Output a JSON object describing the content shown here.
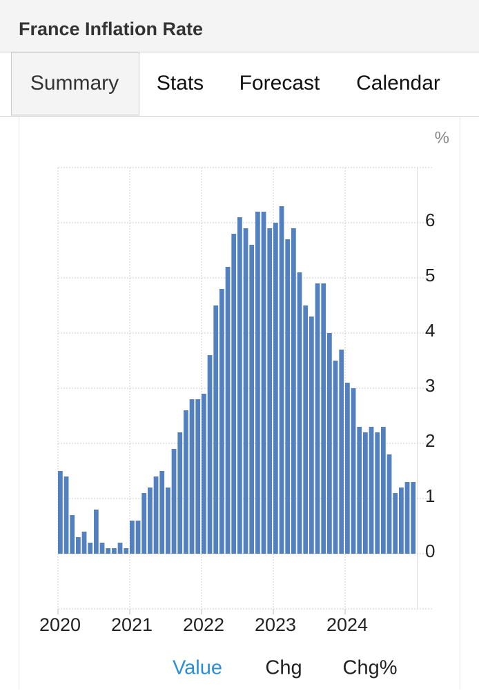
{
  "header": {
    "title": "France Inflation Rate"
  },
  "tabs": [
    "Summary",
    "Stats",
    "Forecast",
    "Calendar"
  ],
  "views": [
    "Value",
    "Chg",
    "Chg%"
  ],
  "chart_data": {
    "type": "bar",
    "ylabel": "%",
    "color": "#5381c0",
    "categories": [
      "2020",
      null,
      null,
      null,
      null,
      null,
      null,
      null,
      null,
      null,
      null,
      null,
      "2021",
      null,
      null,
      null,
      null,
      null,
      null,
      null,
      null,
      null,
      null,
      null,
      "2022",
      null,
      null,
      null,
      null,
      null,
      null,
      null,
      null,
      null,
      null,
      null,
      "2023",
      null,
      null,
      null,
      null,
      null,
      null,
      null,
      null,
      null,
      null,
      null,
      "2024",
      null,
      null,
      null,
      null,
      null,
      null,
      null,
      null,
      null,
      null,
      null
    ],
    "values": [
      1.5,
      1.4,
      0.7,
      0.3,
      0.4,
      0.2,
      0.8,
      0.2,
      0.1,
      0.1,
      0.2,
      0.1,
      0.6,
      0.6,
      1.1,
      1.2,
      1.4,
      1.5,
      1.2,
      1.9,
      2.2,
      2.6,
      2.8,
      2.8,
      2.9,
      3.6,
      4.5,
      4.8,
      5.2,
      5.8,
      6.1,
      5.9,
      5.6,
      6.2,
      6.2,
      5.9,
      6.0,
      6.3,
      5.7,
      5.9,
      5.1,
      4.5,
      4.3,
      4.9,
      4.9,
      4.0,
      3.5,
      3.7,
      3.1,
      3.0,
      2.3,
      2.2,
      2.3,
      2.2,
      2.3,
      1.8,
      1.1,
      1.2,
      1.3,
      1.3
    ],
    "ylim": [
      -1,
      7
    ],
    "yticks": [
      0,
      1,
      2,
      3,
      4,
      5,
      6
    ],
    "grid": true
  }
}
